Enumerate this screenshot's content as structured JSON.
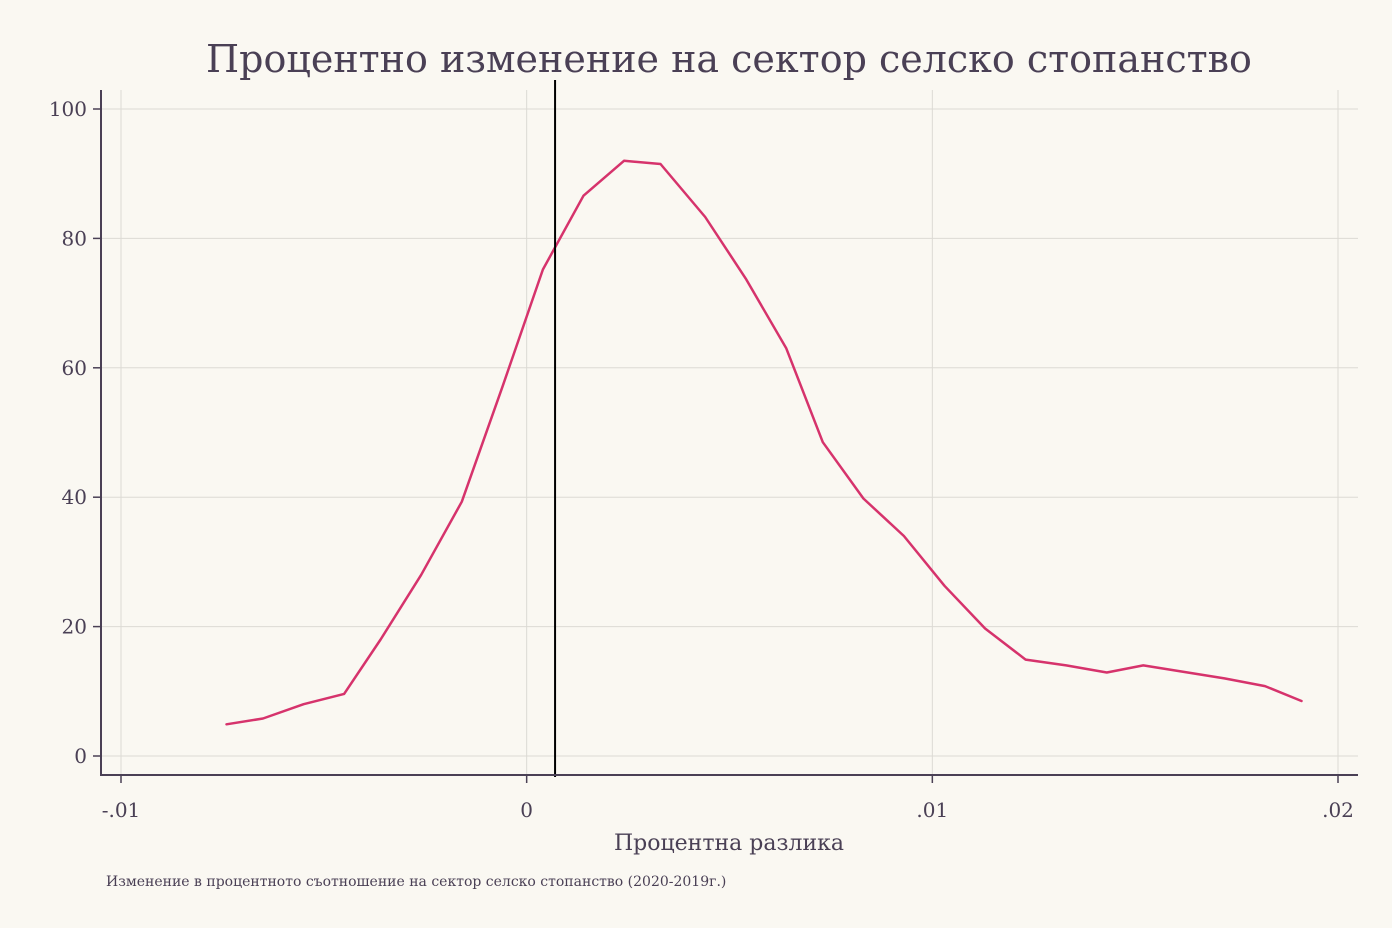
{
  "chart_data": {
    "type": "line",
    "title": "Процентно изменение на сектор селско стопанство",
    "xlabel": "Процентна разлика",
    "ylabel": "",
    "note": "Изменение в процентното съотношение на сектор селско стопанство (2020-2019г.)",
    "xlim": [
      -0.01,
      0.02
    ],
    "ylim": [
      0,
      100
    ],
    "x_ticks": [
      -0.01,
      0,
      0.01,
      0.02
    ],
    "x_tick_labels": [
      "-.01",
      "0",
      ".01",
      ".02"
    ],
    "y_ticks": [
      0,
      20,
      40,
      60,
      80,
      100
    ],
    "y_tick_labels": [
      "0",
      "20",
      "40",
      "60",
      "80",
      "100"
    ],
    "grid": true,
    "reference_line_x": 0.0007,
    "colors": {
      "line": "#d6336c",
      "reference": "#000000",
      "axis": "#4a4055",
      "grid": "#dcdad4",
      "background": "#faf8f2"
    },
    "series": [
      {
        "values_x": [
          -0.0074,
          -0.0065,
          -0.0055,
          -0.0045,
          -0.0036,
          -0.0026,
          -0.0016,
          -0.0006,
          0.0004,
          0.0014,
          0.0024,
          0.0033,
          0.0044,
          0.0054,
          0.0064,
          0.0073,
          0.0083,
          0.0093,
          0.0103,
          0.0113,
          0.0123,
          0.0133,
          0.0143,
          0.0152,
          0.0162,
          0.0172,
          0.0182,
          0.0191
        ],
        "values_y": [
          4.9,
          5.8,
          8.0,
          9.6,
          18.0,
          28.0,
          39.3,
          57.0,
          75.2,
          86.6,
          92.0,
          91.5,
          83.3,
          73.8,
          63.0,
          48.5,
          39.8,
          34.0,
          26.3,
          19.7,
          14.9,
          14.0,
          12.9,
          14.0,
          13.0,
          12.0,
          10.8,
          8.5
        ]
      }
    ]
  }
}
